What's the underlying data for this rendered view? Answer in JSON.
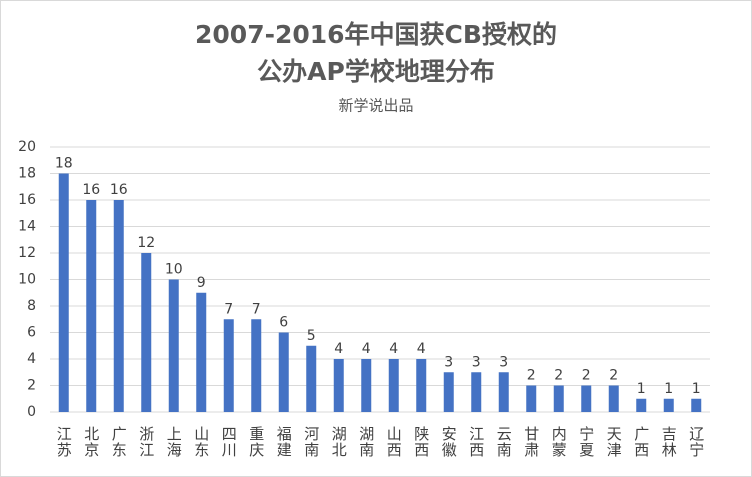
{
  "chart_data": {
    "type": "bar",
    "title": [
      "2007-2016年中国获CB授权的",
      "公办AP学校地理分布"
    ],
    "subtitle": "新学说出品",
    "categories": [
      "江苏",
      "北京",
      "广东",
      "浙江",
      "上海",
      "山东",
      "四川",
      "重庆",
      "福建",
      "河南",
      "湖北",
      "湖南",
      "山西",
      "陕西",
      "安徽",
      "江西",
      "云南",
      "甘肃",
      "内蒙",
      "宁夏",
      "天津",
      "广西",
      "吉林",
      "辽宁"
    ],
    "values": [
      18,
      16,
      16,
      12,
      10,
      9,
      7,
      7,
      6,
      5,
      4,
      4,
      4,
      4,
      3,
      3,
      3,
      2,
      2,
      2,
      2,
      1,
      1,
      1
    ],
    "color": "#4472c4",
    "ylim": [
      0,
      20
    ],
    "yticks": [
      0,
      2,
      4,
      6,
      8,
      10,
      12,
      14,
      16,
      18,
      20
    ],
    "grid": true
  }
}
